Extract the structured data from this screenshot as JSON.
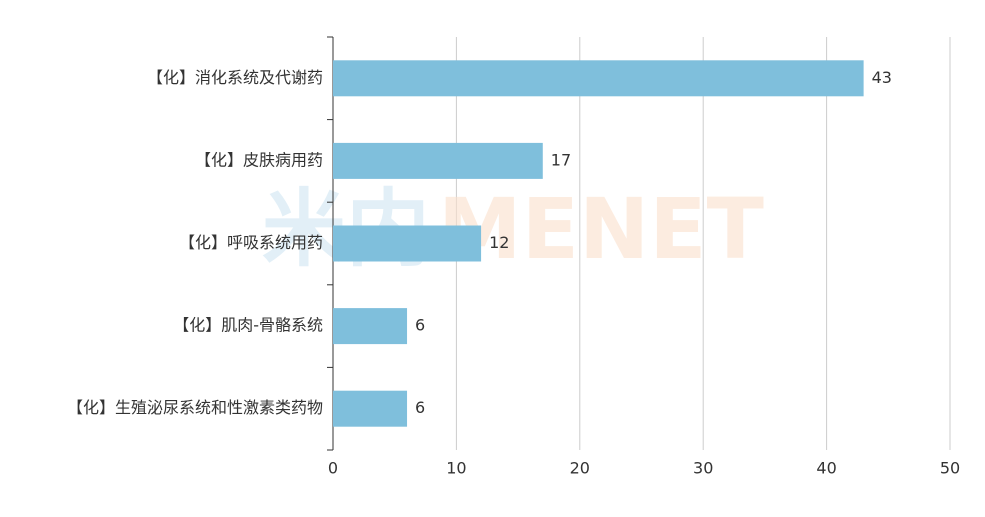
{
  "chart_data": {
    "type": "bar",
    "orientation": "horizontal",
    "categories": [
      "【化】消化系统及代谢药",
      "【化】皮肤病用药",
      "【化】呼吸系统用药",
      "【化】肌肉-骨骼系统",
      "【化】生殖泌尿系统和性激素类药物"
    ],
    "values": [
      43,
      17,
      12,
      6,
      6
    ],
    "color": "#7fbfdc",
    "xlim": [
      0,
      50
    ],
    "xticks": [
      0,
      10,
      20,
      30,
      40,
      50
    ],
    "grid": true,
    "watermark": [
      "米内",
      "MENET"
    ]
  }
}
